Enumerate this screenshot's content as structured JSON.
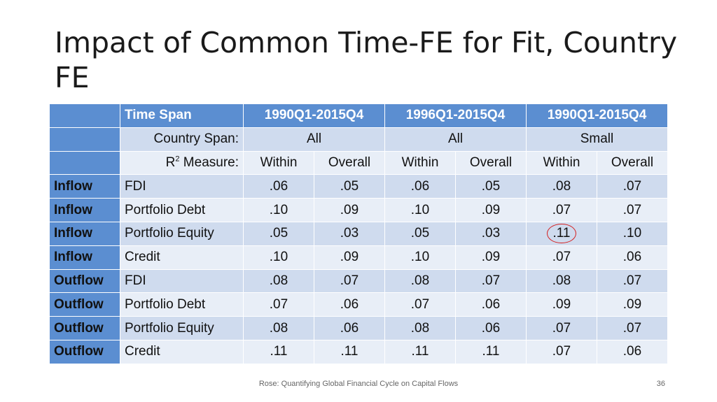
{
  "slide": {
    "title": "Impact of Common Time-FE for Fit, Country FE",
    "footer": "Rose: Quantifying Global Financial Cycle on Capital Flows",
    "page_number": "36"
  },
  "table": {
    "header": [
      "",
      "Time Span",
      "1990Q1-2015Q4",
      "1996Q1-2015Q4",
      "1990Q1-2015Q4"
    ],
    "country_span": {
      "label": "Country Span:",
      "values": [
        "All",
        "All",
        "Small"
      ]
    },
    "r2_measure": {
      "label_base": "R",
      "label_sup": "2",
      "label_rest": " Measure:",
      "values": [
        "Within",
        "Overall",
        "Within",
        "Overall",
        "Within",
        "Overall"
      ]
    },
    "rows": [
      {
        "direction": "Inflow",
        "type": "FDI",
        "values": [
          ".06",
          ".05",
          ".06",
          ".05",
          ".08",
          ".07"
        ]
      },
      {
        "direction": "Inflow",
        "type": "Portfolio Debt",
        "values": [
          ".10",
          ".09",
          ".10",
          ".09",
          ".07",
          ".07"
        ]
      },
      {
        "direction": "Inflow",
        "type": "Portfolio Equity",
        "values": [
          ".05",
          ".03",
          ".05",
          ".03",
          ".11",
          ".10"
        ]
      },
      {
        "direction": "Inflow",
        "type": "Credit",
        "values": [
          ".10",
          ".09",
          ".10",
          ".09",
          ".07",
          ".06"
        ]
      },
      {
        "direction": "Outflow",
        "type": "FDI",
        "values": [
          ".08",
          ".07",
          ".08",
          ".07",
          ".08",
          ".07"
        ]
      },
      {
        "direction": "Outflow",
        "type": "Portfolio Debt",
        "values": [
          ".07",
          ".06",
          ".07",
          ".06",
          ".09",
          ".09"
        ]
      },
      {
        "direction": "Outflow",
        "type": "Portfolio Equity",
        "values": [
          ".08",
          ".06",
          ".08",
          ".06",
          ".07",
          ".07"
        ]
      },
      {
        "direction": "Outflow",
        "type": "Credit",
        "values": [
          ".11",
          ".11",
          ".11",
          ".11",
          ".07",
          ".06"
        ]
      }
    ],
    "highlight_color": "#d42020",
    "header_color": "#5b8ed1"
  }
}
